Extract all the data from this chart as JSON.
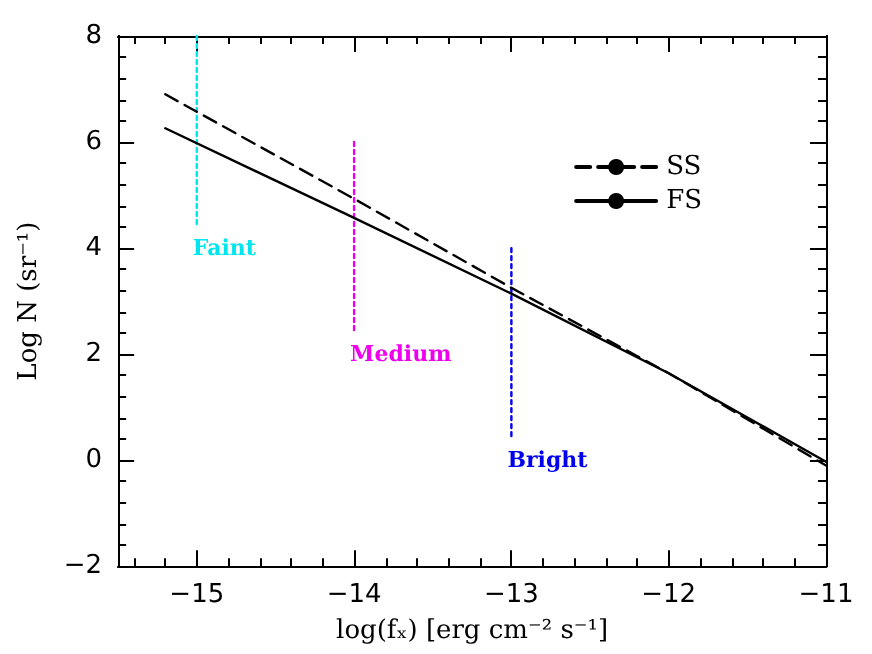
{
  "chart_data": {
    "type": "line",
    "xlabel": "log(fₓ) [erg cm⁻² s⁻¹]",
    "ylabel": "Log N (sr⁻¹)",
    "xlim": [
      -15.5,
      -11
    ],
    "xticks": [
      -15,
      -14,
      -13,
      -12,
      -11
    ],
    "ylim": [
      -2,
      8
    ],
    "yticks": [
      -2,
      0,
      2,
      4,
      6,
      8
    ],
    "grid": false,
    "legend": "top right",
    "marker": "none",
    "series": [
      {
        "name": "SS",
        "color": "#000000",
        "line_style": "dashed",
        "x": [
          -15.2,
          -14,
          -13,
          -12,
          -11
        ],
        "values": [
          6.9,
          4.93,
          3.25,
          1.64,
          -0.1
        ]
      },
      {
        "name": "FS",
        "color": "#000000",
        "line_style": "solid",
        "x": [
          -15.2,
          -14,
          -13,
          -12,
          -11
        ],
        "values": [
          6.26,
          4.57,
          3.14,
          1.64,
          -0.03
        ]
      },
      {
        "name": "Faint",
        "color": "#00e5ee",
        "line_style": "dotted",
        "x": [
          -15,
          -15
        ],
        "values": [
          8,
          4.4
        ]
      },
      {
        "name": "Medium",
        "color": "#ee00ee",
        "line_style": "dotted",
        "x": [
          -14,
          -14
        ],
        "values": [
          6,
          2.4
        ]
      },
      {
        "name": "Bright",
        "color": "#0000ee",
        "line_style": "dotted",
        "x": [
          -13,
          -13
        ],
        "values": [
          4,
          0.4
        ]
      }
    ]
  }
}
